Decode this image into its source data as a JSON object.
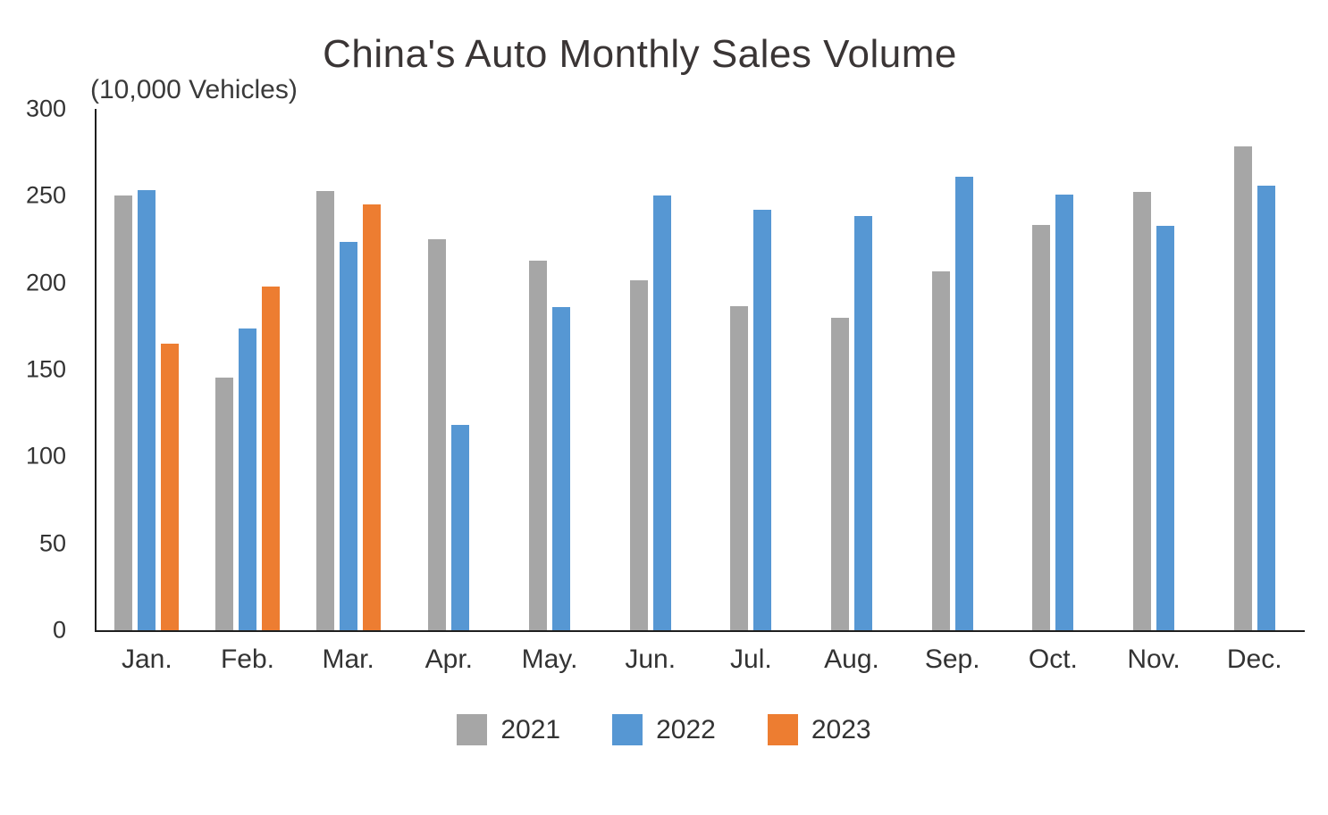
{
  "chart": {
    "title": "China's Auto Monthly Sales Volume",
    "unit_label": "(10,000 Vehicles)"
  },
  "chart_data": {
    "type": "bar",
    "title": "China's Auto Monthly Sales Volume",
    "unit_label": "(10,000 Vehicles)",
    "categories": [
      "Jan.",
      "Feb.",
      "Mar.",
      "Apr.",
      "May.",
      "Jun.",
      "Jul.",
      "Aug.",
      "Sep.",
      "Oct.",
      "Nov.",
      "Dec."
    ],
    "series": [
      {
        "name": "2021",
        "color": "#a6a6a6",
        "values": [
          250.3,
          145.5,
          252.6,
          225.2,
          212.8,
          201.5,
          186.4,
          179.9,
          206.7,
          233.3,
          252.2,
          278.6
        ]
      },
      {
        "name": "2022",
        "color": "#5697d3",
        "values": [
          253.1,
          173.7,
          223.4,
          118.1,
          186.2,
          250.2,
          242.0,
          238.3,
          261.0,
          250.5,
          232.8,
          255.7
        ]
      },
      {
        "name": "2023",
        "color": "#ed7d31",
        "values": [
          164.9,
          197.6,
          245.1,
          null,
          null,
          null,
          null,
          null,
          null,
          null,
          null,
          null
        ]
      }
    ],
    "ylim": [
      0,
      300
    ],
    "yticks": [
      0,
      50,
      100,
      150,
      200,
      250,
      300
    ],
    "xlabel": "",
    "ylabel": "(10,000 Vehicles)",
    "grid": false,
    "legend_position": "bottom",
    "axis_color": "#1f1f1f",
    "text_color": "#333333"
  }
}
